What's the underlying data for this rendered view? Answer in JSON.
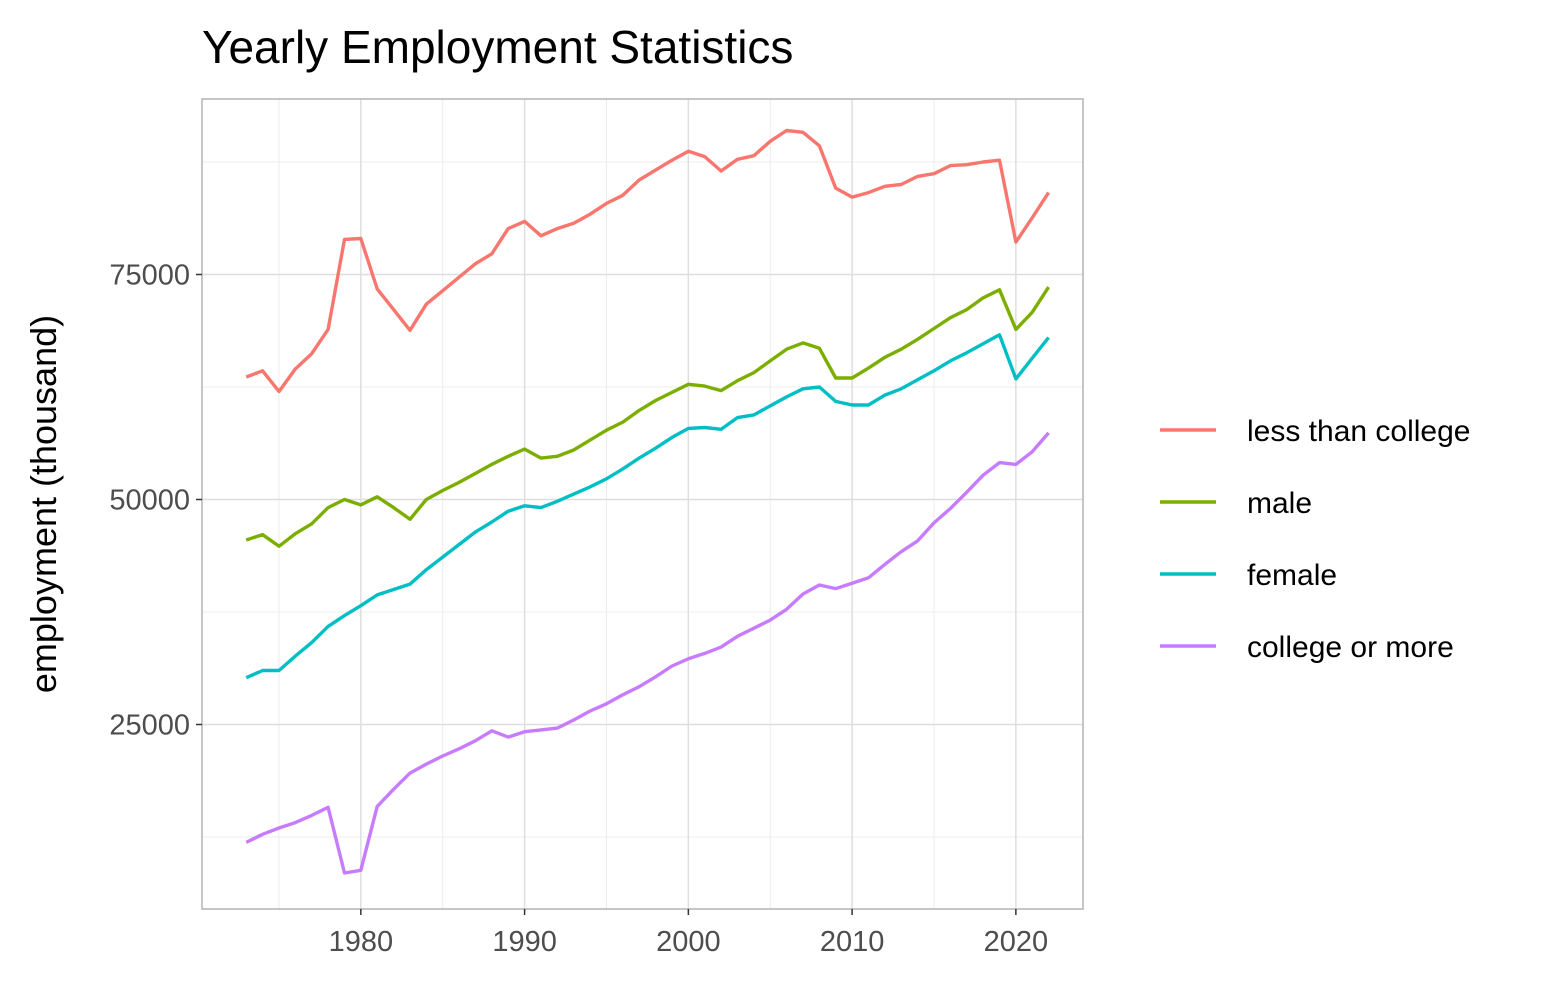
{
  "chart_data": {
    "type": "line",
    "title": "Yearly Employment Statistics",
    "xlabel": "",
    "ylabel": "employment (thousand)",
    "x_ticks": [
      1980,
      1990,
      2000,
      2010,
      2020
    ],
    "y_ticks": [
      25000,
      50000,
      75000
    ],
    "xlim": [
      1970.3,
      2024.1
    ],
    "ylim": [
      4500,
      94500
    ],
    "grid": true,
    "legend_position": "right",
    "x": [
      1973,
      1974,
      1975,
      1976,
      1977,
      1978,
      1979,
      1980,
      1981,
      1982,
      1983,
      1984,
      1985,
      1986,
      1987,
      1988,
      1989,
      1990,
      1991,
      1992,
      1993,
      1994,
      1995,
      1996,
      1997,
      1998,
      1999,
      2000,
      2001,
      2002,
      2003,
      2004,
      2005,
      2006,
      2007,
      2008,
      2009,
      2010,
      2011,
      2012,
      2013,
      2014,
      2015,
      2016,
      2017,
      2018,
      2019,
      2020,
      2021,
      2022
    ],
    "series": [
      {
        "name": "less than college",
        "color": "#F8766D",
        "values": [
          63600,
          64300,
          62000,
          64500,
          66200,
          68900,
          78900,
          79000,
          73400,
          71100,
          68800,
          71700,
          73200,
          74700,
          76200,
          77300,
          80100,
          80900,
          79300,
          80100,
          80700,
          81700,
          82900,
          83800,
          85500,
          86600,
          87700,
          88700,
          88100,
          86500,
          87800,
          88200,
          89800,
          91000,
          90800,
          89300,
          84600,
          83600,
          84100,
          84800,
          85000,
          85900,
          86200,
          87100,
          87200,
          87500,
          87700,
          78600,
          81300,
          84100
        ]
      },
      {
        "name": "male",
        "color": "#7CAE00",
        "values": [
          45500,
          46100,
          44800,
          46200,
          47300,
          49100,
          50000,
          49400,
          50300,
          49100,
          47800,
          50000,
          51000,
          51900,
          52900,
          53900,
          54800,
          55600,
          54600,
          54800,
          55500,
          56600,
          57700,
          58600,
          59900,
          61000,
          61900,
          62800,
          62600,
          62100,
          63200,
          64100,
          65400,
          66700,
          67400,
          66800,
          63500,
          63500,
          64600,
          65800,
          66700,
          67800,
          69000,
          70200,
          71100,
          72400,
          73300,
          68900,
          70800,
          73600
        ]
      },
      {
        "name": "female",
        "color": "#00BFC4",
        "values": [
          30200,
          31000,
          31000,
          32600,
          34100,
          35900,
          37100,
          38200,
          39400,
          40000,
          40600,
          42200,
          43600,
          45000,
          46400,
          47500,
          48700,
          49300,
          49100,
          49800,
          50600,
          51400,
          52300,
          53400,
          54600,
          55700,
          56900,
          57900,
          58000,
          57800,
          59100,
          59400,
          60400,
          61400,
          62300,
          62500,
          60900,
          60500,
          60500,
          61600,
          62300,
          63300,
          64300,
          65400,
          66300,
          67300,
          68300,
          63400,
          65700,
          68000
        ]
      },
      {
        "name": "college or more",
        "color": "#C77CFF",
        "values": [
          11900,
          12800,
          13500,
          14100,
          14900,
          15800,
          8500,
          8800,
          15900,
          17800,
          19600,
          20600,
          21500,
          22300,
          23200,
          24300,
          23600,
          24200,
          24400,
          24600,
          25500,
          26500,
          27300,
          28300,
          29200,
          30300,
          31500,
          32300,
          32900,
          33600,
          34800,
          35700,
          36600,
          37800,
          39500,
          40500,
          40100,
          40700,
          41300,
          42800,
          44200,
          45400,
          47400,
          49000,
          50800,
          52700,
          54100,
          53900,
          55300,
          57400
        ]
      }
    ]
  }
}
